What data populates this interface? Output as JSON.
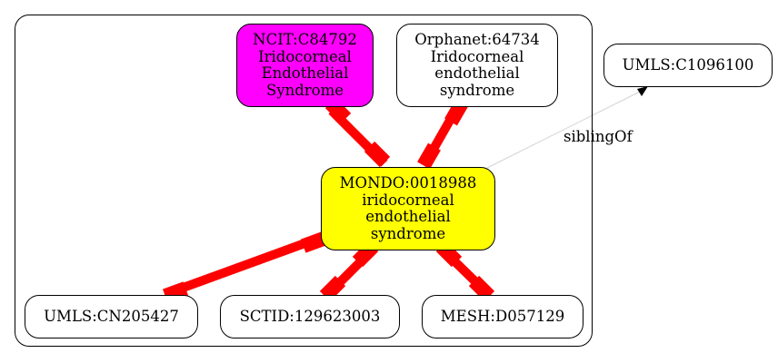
{
  "colors": {
    "equivalent_edge": "#ff0000",
    "sibling_edge": "#d3d3d3",
    "focus_fill": "#ffff00",
    "ncit_fill": "#ff00ff",
    "default_fill": "#ffffff"
  },
  "nodes": {
    "mondo": {
      "id": "MONDO:0018988",
      "label": [
        "iridocorneal",
        "endothelial",
        "syndrome"
      ]
    },
    "ncit": {
      "id": "NCIT:C84792",
      "label": [
        "Iridocorneal",
        "Endothelial",
        "Syndrome"
      ]
    },
    "orphanet": {
      "id": "Orphanet:64734",
      "label": [
        "Iridocorneal",
        "endothelial",
        "syndrome"
      ]
    },
    "umls_cn": {
      "id": "UMLS:CN205427"
    },
    "sctid": {
      "id": "SCTID:129623003"
    },
    "mesh": {
      "id": "MESH:D057129"
    },
    "umls_c": {
      "id": "UMLS:C1096100"
    }
  },
  "edges": {
    "sibling_label": "siblingOf"
  }
}
